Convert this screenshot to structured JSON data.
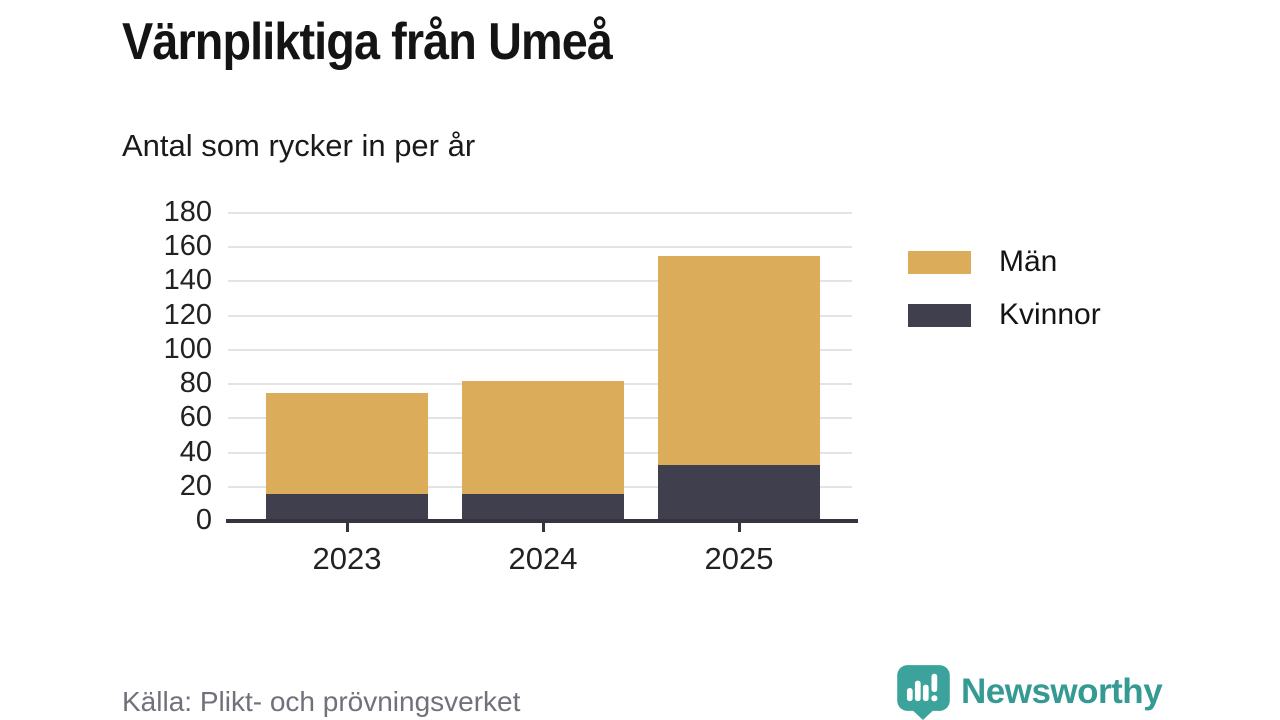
{
  "header": {
    "title": "Värnpliktiga från Umeå",
    "subtitle": "Antal som rycker in per år"
  },
  "chart_data": {
    "type": "bar",
    "stacked": true,
    "title": "Värnpliktiga från Umeå",
    "subtitle": "Antal som rycker in per år",
    "categories": [
      "2023",
      "2024",
      "2025"
    ],
    "series": [
      {
        "name": "Män",
        "color": "#DBAC5A",
        "values": [
          59,
          66,
          122
        ]
      },
      {
        "name": "Kvinnor",
        "color": "#3F3F4D",
        "values": [
          16,
          16,
          33
        ]
      }
    ],
    "stack_bottom_to_top": [
      "Kvinnor",
      "Män"
    ],
    "totals": [
      75,
      82,
      155
    ],
    "ylim": [
      0,
      180
    ],
    "ytick_step": 20,
    "grid": "horizontal",
    "legend_position": "right",
    "source": "Källa: Plikt- och prövningsverket"
  },
  "footer": {
    "source": "Källa: Plikt- och prövningsverket",
    "brand": "Newsworthy",
    "brand_color": "#359a94",
    "brand_icon": "speech-bubble-bar-chart"
  },
  "colors": {
    "axis": "#35343f",
    "gridline": "#e3e3e3",
    "text_dark": "#141414",
    "text_muted": "#71717b"
  }
}
